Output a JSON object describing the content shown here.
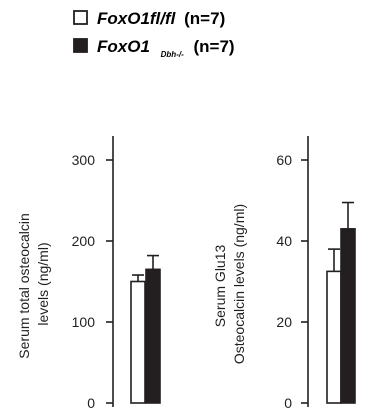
{
  "legend": {
    "items": [
      {
        "swatch": "open",
        "name_italic": "FoxO1fl/fl",
        "name_sub": "",
        "n_label": "(n=7)"
      },
      {
        "swatch": "filled",
        "name_italic": "FoxO1",
        "name_sub": "Dbh-/-",
        "n_label": "(n=7)"
      }
    ]
  },
  "colors": {
    "ink": "#231f20",
    "open_fill": "#ffffff",
    "filled_fill": "#231f20"
  },
  "chart_data": [
    {
      "type": "bar",
      "title": "",
      "ylabel_lines": [
        "Serum total osteocalcin",
        "levels (ng/ml)"
      ],
      "xlabel": "",
      "ylim": [
        0,
        300
      ],
      "yticks": [
        0,
        100,
        200,
        300
      ],
      "series": [
        {
          "name": "FoxO1fl/fl",
          "fill": "open",
          "value": 150,
          "error": 8
        },
        {
          "name": "FoxO1 Dbh-/-",
          "fill": "filled",
          "value": 165,
          "error": 17
        }
      ]
    },
    {
      "type": "bar",
      "title": "",
      "ylabel_lines": [
        "Serum Glu13",
        "Osteocalcin levels (ng/ml)"
      ],
      "xlabel": "",
      "ylim": [
        0,
        60
      ],
      "yticks": [
        0,
        20,
        40,
        60
      ],
      "series": [
        {
          "name": "FoxO1fl/fl",
          "fill": "open",
          "value": 32.5,
          "error": 5.5
        },
        {
          "name": "FoxO1 Dbh-/-",
          "fill": "filled",
          "value": 43,
          "error": 6.5
        }
      ]
    }
  ]
}
